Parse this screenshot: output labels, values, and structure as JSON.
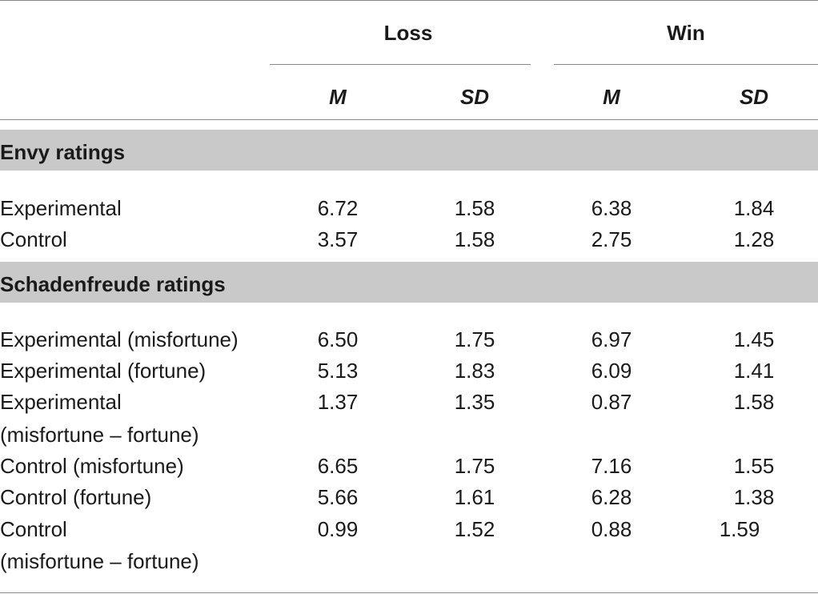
{
  "table": {
    "groups": [
      "Loss",
      "Win"
    ],
    "subheaders": [
      "M",
      "SD",
      "M",
      "SD"
    ],
    "sections": [
      {
        "title": "Envy ratings",
        "rows": [
          {
            "label": [
              "Experimental"
            ],
            "values": [
              "6.72",
              "1.58",
              "6.38",
              "1.84"
            ]
          },
          {
            "label": [
              "Control"
            ],
            "values": [
              "3.57",
              "1.58",
              "2.75",
              "1.28"
            ]
          }
        ]
      },
      {
        "title": "Schadenfreude ratings",
        "rows": [
          {
            "label": [
              "Experimental (misfortune)"
            ],
            "values": [
              "6.50",
              "1.75",
              "6.97",
              "1.45"
            ]
          },
          {
            "label": [
              "Experimental (fortune)"
            ],
            "values": [
              "5.13",
              "1.83",
              "6.09",
              "1.41"
            ]
          },
          {
            "label": [
              "Experimental",
              "(misfortune – fortune)"
            ],
            "values": [
              "1.37",
              "1.35",
              "0.87",
              "1.58"
            ]
          },
          {
            "label": [
              "Control (misfortune)"
            ],
            "values": [
              "6.65",
              "1.75",
              "7.16",
              "1.55"
            ]
          },
          {
            "label": [
              "Control (fortune)"
            ],
            "values": [
              "5.66",
              "1.61",
              "6.28",
              "1.38"
            ]
          },
          {
            "label": [
              "Control",
              "(misfortune – fortune)"
            ],
            "values": [
              "0.99",
              "1.52",
              "0.88",
              "1.59"
            ]
          }
        ]
      }
    ]
  }
}
